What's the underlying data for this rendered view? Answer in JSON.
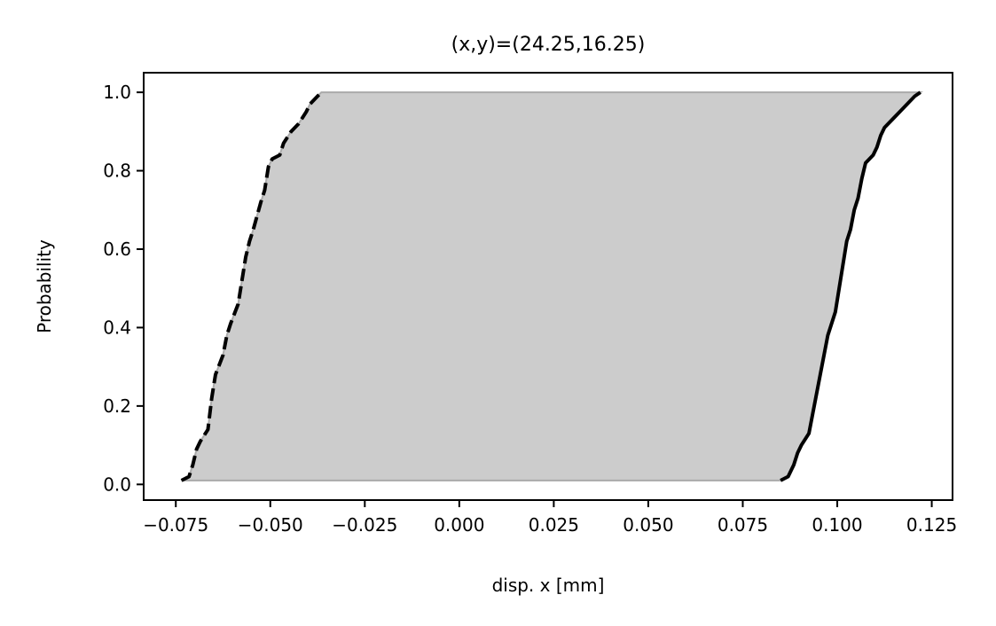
{
  "chart_data": {
    "type": "area",
    "title": "(x,y)=(24.25,16.25)",
    "xlabel": "disp. x [mm]",
    "ylabel": "Probability",
    "xlim": [
      -0.0835,
      0.1305
    ],
    "ylim": [
      -0.04,
      1.05
    ],
    "xticks": [
      -0.075,
      -0.05,
      -0.025,
      0.0,
      0.025,
      0.05,
      0.075,
      0.1,
      0.125
    ],
    "xtick_labels": [
      "−0.075",
      "−0.050",
      "−0.025",
      "0.000",
      "0.025",
      "0.050",
      "0.075",
      "0.100",
      "0.125"
    ],
    "yticks": [
      0.0,
      0.2,
      0.4,
      0.6,
      0.8,
      1.0
    ],
    "ytick_labels": [
      "0.0",
      "0.2",
      "0.4",
      "0.6",
      "0.8",
      "1.0"
    ],
    "grid": false,
    "fill_color": "#cccccc",
    "line_color": "#000000",
    "series": [
      {
        "style": "dashed",
        "points": [
          [
            -0.0735,
            0.01
          ],
          [
            -0.0715,
            0.02
          ],
          [
            -0.0705,
            0.05
          ],
          [
            -0.0695,
            0.09
          ],
          [
            -0.0685,
            0.11
          ],
          [
            -0.0665,
            0.14
          ],
          [
            -0.0655,
            0.22
          ],
          [
            -0.0645,
            0.28
          ],
          [
            -0.0625,
            0.33
          ],
          [
            -0.0615,
            0.38
          ],
          [
            -0.0605,
            0.41
          ],
          [
            -0.0585,
            0.46
          ],
          [
            -0.0575,
            0.52
          ],
          [
            -0.0565,
            0.58
          ],
          [
            -0.0555,
            0.62
          ],
          [
            -0.0545,
            0.65
          ],
          [
            -0.0525,
            0.72
          ],
          [
            -0.0515,
            0.75
          ],
          [
            -0.0505,
            0.81
          ],
          [
            -0.0495,
            0.83
          ],
          [
            -0.0475,
            0.84
          ],
          [
            -0.0465,
            0.87
          ],
          [
            -0.0445,
            0.9
          ],
          [
            -0.0425,
            0.92
          ],
          [
            -0.0405,
            0.95
          ],
          [
            -0.0395,
            0.97
          ],
          [
            -0.0375,
            0.99
          ],
          [
            -0.0365,
            1.0
          ]
        ]
      },
      {
        "style": "solid",
        "points": [
          [
            0.085,
            0.01
          ],
          [
            0.087,
            0.02
          ],
          [
            0.0885,
            0.05
          ],
          [
            0.0895,
            0.08
          ],
          [
            0.0905,
            0.1
          ],
          [
            0.0925,
            0.13
          ],
          [
            0.0935,
            0.18
          ],
          [
            0.0945,
            0.23
          ],
          [
            0.0955,
            0.28
          ],
          [
            0.0965,
            0.33
          ],
          [
            0.0975,
            0.38
          ],
          [
            0.0985,
            0.41
          ],
          [
            0.0995,
            0.44
          ],
          [
            0.1005,
            0.5
          ],
          [
            0.1015,
            0.56
          ],
          [
            0.1025,
            0.62
          ],
          [
            0.1035,
            0.65
          ],
          [
            0.1045,
            0.7
          ],
          [
            0.1055,
            0.73
          ],
          [
            0.1065,
            0.78
          ],
          [
            0.1075,
            0.82
          ],
          [
            0.1095,
            0.84
          ],
          [
            0.1105,
            0.86
          ],
          [
            0.1115,
            0.89
          ],
          [
            0.1125,
            0.91
          ],
          [
            0.1145,
            0.93
          ],
          [
            0.1165,
            0.95
          ],
          [
            0.1185,
            0.97
          ],
          [
            0.1205,
            0.99
          ],
          [
            0.122,
            1.0
          ]
        ]
      }
    ]
  }
}
